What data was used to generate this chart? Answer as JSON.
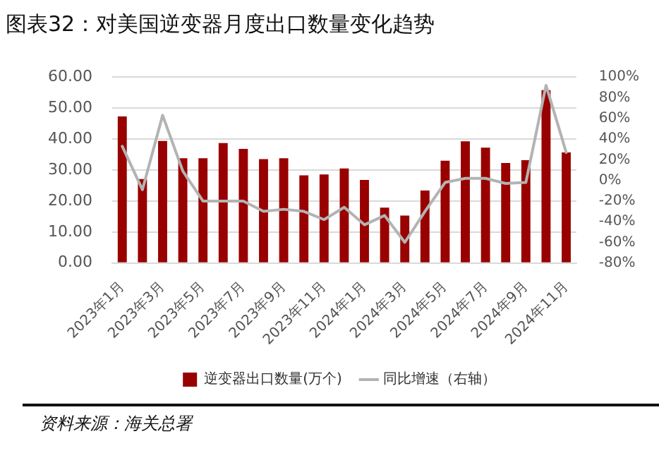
{
  "chart_data": {
    "type": "bar",
    "title": "图表32：对美国逆变器月度出口数量变化趋势",
    "annotations": [
      "资料来源：海关总署"
    ],
    "categories": [
      "2023年1月",
      null,
      "2023年3月",
      null,
      "2023年5月",
      null,
      "2023年7月",
      null,
      "2023年9月",
      null,
      "2023年11月",
      null,
      "2024年1月",
      null,
      "2024年3月",
      null,
      "2024年5月",
      null,
      "2024年7月",
      null,
      "2024年9月",
      null,
      "2024年11月"
    ],
    "series": [
      {
        "name": "逆变器出口数量(万个)",
        "color": "#990000",
        "values": [
          47.3,
          27.1,
          39.4,
          33.8,
          33.8,
          38.7,
          36.8,
          33.5,
          33.8,
          28.3,
          28.6,
          30.5,
          26.8,
          17.9,
          15.3,
          23.4,
          33.0,
          39.3,
          37.2,
          32.3,
          33.2,
          55.8,
          35.7
        ]
      },
      {
        "name": "同比增速（右轴）",
        "type": "line",
        "axis": "y2",
        "color": "#b3b3b3",
        "values": [
          33,
          -9,
          63,
          9,
          -20,
          -20,
          -20,
          -30,
          -28,
          -30,
          -38,
          -26,
          -43,
          -34,
          -60,
          -30,
          -2,
          2,
          2,
          -3,
          -2,
          92,
          27
        ]
      }
    ],
    "ylim": [
      0,
      60
    ],
    "yticks": [
      {
        "value": 0,
        "label": "0.00"
      },
      {
        "value": 10,
        "label": "10.00"
      },
      {
        "value": 20,
        "label": "20.00"
      },
      {
        "value": 30,
        "label": "30.00"
      },
      {
        "value": 40,
        "label": "40.00"
      },
      {
        "value": 50,
        "label": "50.00"
      },
      {
        "value": 60,
        "label": "60.00"
      }
    ],
    "y2lim": [
      -80,
      100
    ],
    "y2ticks": [
      {
        "value": -80,
        "label": "-80%"
      },
      {
        "value": -60,
        "label": "-60%"
      },
      {
        "value": -40,
        "label": "-40%"
      },
      {
        "value": -20,
        "label": "-20%"
      },
      {
        "value": 0,
        "label": "0%"
      },
      {
        "value": 20,
        "label": "20%"
      },
      {
        "value": 40,
        "label": "40%"
      },
      {
        "value": 60,
        "label": "60%"
      },
      {
        "value": 80,
        "label": "80%"
      },
      {
        "value": 100,
        "label": "100%"
      }
    ],
    "grid": "y",
    "legend": "bottom"
  }
}
